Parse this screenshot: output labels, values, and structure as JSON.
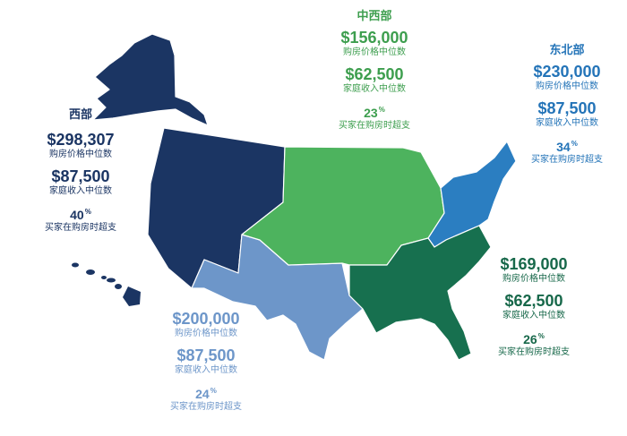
{
  "colors": {
    "west": "#1b3563",
    "midwest": "#4db35e",
    "northeast": "#2b7ec1",
    "south": "#17704f",
    "southwest": "#6d96c9",
    "border": "#ffffff",
    "west_text": "#1b3563",
    "midwest_text": "#3d9e4e",
    "northeast_text": "#2474b8",
    "south_text": "#17684a",
    "southwest_text": "#6d96c9"
  },
  "regions": {
    "west": {
      "name": "西部",
      "home_price": "$298,307",
      "home_price_label": "购房价格中位数",
      "income": "$87,500",
      "income_label": "家庭收入中位数",
      "overspend": "40",
      "overspend_unit": "%",
      "overspend_label": "买家在购房时超支"
    },
    "midwest": {
      "name": "中西部",
      "home_price": "$156,000",
      "home_price_label": "购房价格中位数",
      "income": "$62,500",
      "income_label": "家庭收入中位数",
      "overspend": "23",
      "overspend_unit": "%",
      "overspend_label": "买家在购房时超支"
    },
    "northeast": {
      "name": "东北部",
      "home_price": "$230,000",
      "home_price_label": "购房价格中位数",
      "income": "$87,500",
      "income_label": "家庭收入中位数",
      "overspend": "34",
      "overspend_unit": "%",
      "overspend_label": "买家在购房时超支"
    },
    "south": {
      "home_price": "$169,000",
      "home_price_label": "购房价格中位数",
      "income": "$62,500",
      "income_label": "家庭收入中位数",
      "overspend": "26",
      "overspend_unit": "%",
      "overspend_label": "买家在购房时超支"
    },
    "southwest": {
      "home_price": "$200,000",
      "home_price_label": "购房价格中位数",
      "income": "$87,500",
      "income_label": "家庭收入中位数",
      "overspend": "24",
      "overspend_unit": "%",
      "overspend_label": "买家在购房时超支"
    }
  }
}
